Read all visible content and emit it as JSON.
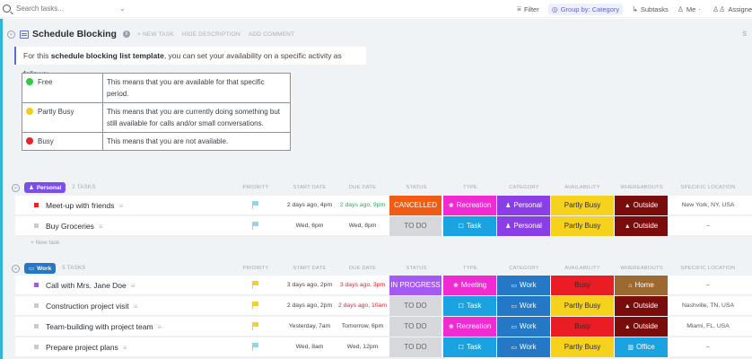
{
  "toolbar": {
    "search_placeholder": "Search tasks...",
    "filter_label": "Filter",
    "group_label": "Group by: Category",
    "subtasks_label": "Subtasks",
    "me_label": "Me",
    "assignees_label": "Assigne"
  },
  "list": {
    "title": "Schedule Blocking",
    "new_task_link": "+ NEW TASK",
    "hide_description_link": "HIDE DESCRIPTION",
    "add_comment_link": "ADD COMMENT",
    "right_edge": "S",
    "description_prefix": "For this ",
    "description_bold": "schedule blocking list template",
    "description_suffix": ", you can set your availability on a specific activity as follows:"
  },
  "legend": [
    {
      "label": "Free",
      "color": "#2ecc40",
      "text": "This means that you are available for that specific period."
    },
    {
      "label": "Partly Busy",
      "color": "#f5cd1c",
      "text": "This means that you are currently doing something but still available for calls and/or small conversations."
    },
    {
      "label": "Busy",
      "color": "#e8232b",
      "text": "This means that you are not available."
    }
  ],
  "columns": {
    "priority": "PRIORITY",
    "start_date": "START DATE",
    "due_date": "DUE DATE",
    "status": "STATUS",
    "type": "TYPE",
    "category": "CATEGORY",
    "availability": "AVAILABILITY",
    "whereabouts": "WHEREABOUTS",
    "location": "SPECIFIC LOCATION"
  },
  "groups": {
    "personal": {
      "label": "Personal",
      "count": "2 TASKS",
      "color": "#7b4ef0",
      "new_task": "+ New task",
      "tasks": [
        {
          "name": "Meet-up with friends",
          "square": "#e8232b",
          "flag": "#8fd4f0",
          "start": "2 days ago, 4pm",
          "due": "2 days ago, 9pm",
          "due_color": "#27ae60",
          "status": "CANCELLED",
          "status_bg": "#f05c14",
          "status_fg": "#ffffff",
          "type": "Recreation",
          "type_bg": "#f02bd2",
          "category": "Personal",
          "category_bg": "#8a3fe6",
          "availability": "Partly Busy",
          "availability_bg": "#f7d21c",
          "whereabouts": "Outside",
          "whereabouts_bg": "#7a0c0c",
          "location": "New York, NY, USA"
        },
        {
          "name": "Buy Groceries",
          "square": "#c8ccd1",
          "flag": "#8fd4f0",
          "start": "Wed, 6pm",
          "due": "Wed, 8pm",
          "due_color": "#444444",
          "status": "TO DO",
          "status_bg": "#d6d8db",
          "status_fg": "#666666",
          "type": "Task",
          "type_bg": "#1aa3e0",
          "category": "Personal",
          "category_bg": "#8a3fe6",
          "availability": "Partly Busy",
          "availability_bg": "#f7d21c",
          "whereabouts": "Outside",
          "whereabouts_bg": "#7a0c0c",
          "location": "–"
        }
      ]
    },
    "work": {
      "label": "Work",
      "count": "5 TASKS",
      "color": "#2478c6",
      "tasks": [
        {
          "name": "Call with Mrs. Jane Doe",
          "square": "#9b59e8",
          "flag": "#f7d21c",
          "start": "3 days ago, 2pm",
          "due": "3 days ago, 3pm",
          "due_color": "#e8232b",
          "status": "IN PROGRESS",
          "status_bg": "#a55af5",
          "status_fg": "#ffffff",
          "type": "Meeting",
          "type_bg": "#f02bd2",
          "category": "Work",
          "category_bg": "#2478c6",
          "availability": "Busy",
          "availability_bg": "#ea1c24",
          "whereabouts": "Home",
          "whereabouts_bg": "#9c6a31",
          "location": "–"
        },
        {
          "name": "Construction project visit",
          "square": "#c8ccd1",
          "flag": "#f7d21c",
          "start": "2 days ago, 2pm",
          "due": "2 days ago, 10am",
          "due_color": "#e8232b",
          "status": "TO DO",
          "status_bg": "#d6d8db",
          "status_fg": "#666666",
          "type": "Task",
          "type_bg": "#1aa3e0",
          "category": "Work",
          "category_bg": "#2478c6",
          "availability": "Partly Busy",
          "availability_bg": "#f7d21c",
          "whereabouts": "Outside",
          "whereabouts_bg": "#7a0c0c",
          "location": "Nashville, TN, USA"
        },
        {
          "name": "Team-building with project team",
          "square": "#c8ccd1",
          "flag": "#f7d21c",
          "start": "Yesterday, 7am",
          "due": "Tomorrow, 6pm",
          "due_color": "#444444",
          "status": "TO DO",
          "status_bg": "#d6d8db",
          "status_fg": "#666666",
          "type": "Recreation",
          "type_bg": "#f02bd2",
          "category": "Work",
          "category_bg": "#2478c6",
          "availability": "Busy",
          "availability_bg": "#ea1c24",
          "whereabouts": "Outside",
          "whereabouts_bg": "#7a0c0c",
          "location": "Miami, FL, USA"
        },
        {
          "name": "Prepare project plans",
          "square": "#c8ccd1",
          "flag": "#8fd4f0",
          "start": "Wed, 8am",
          "due": "Wed, 12pm",
          "due_color": "#444444",
          "status": "TO DO",
          "status_bg": "#d6d8db",
          "status_fg": "#666666",
          "type": "Task",
          "type_bg": "#1aa3e0",
          "category": "Work",
          "category_bg": "#2478c6",
          "availability": "Partly Busy",
          "availability_bg": "#f7d21c",
          "whereabouts": "Office",
          "whereabouts_bg": "#1aa3e0",
          "location": "–"
        }
      ]
    }
  }
}
